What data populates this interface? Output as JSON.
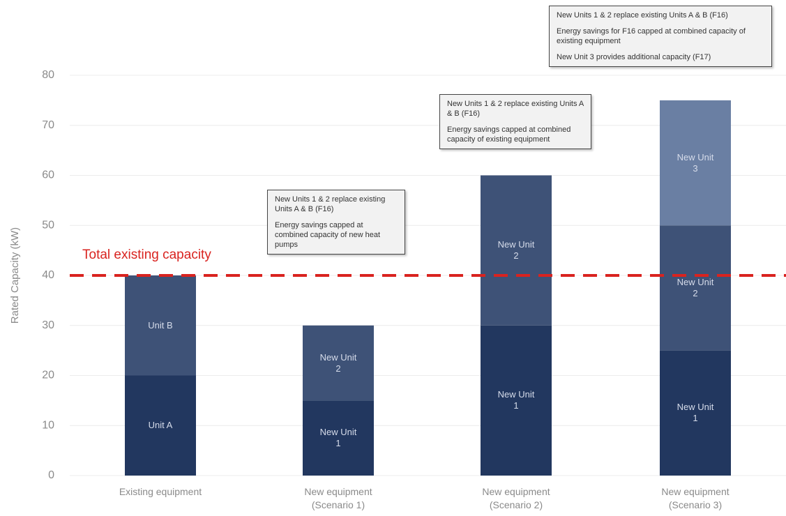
{
  "chart_data": {
    "type": "stacked-bar",
    "y_label": "Rated Capacity (kW)",
    "ylim": [
      0,
      80
    ],
    "yticks": [
      0,
      10,
      20,
      30,
      40,
      50,
      60,
      70,
      80
    ],
    "grid": true,
    "bars": [
      {
        "category": "Existing equipment",
        "segments": [
          {
            "name": "Unit A",
            "value": 20,
            "color": "#22375f"
          },
          {
            "name": "Unit B",
            "value": 20,
            "color": "#3e5277"
          }
        ]
      },
      {
        "category": "New equipment (Scenario 1)",
        "segments": [
          {
            "name": "New Unit 1",
            "value": 15,
            "color": "#22375f"
          },
          {
            "name": "New Unit 2",
            "value": 15,
            "color": "#3e5277"
          }
        ]
      },
      {
        "category": "New equipment (Scenario 2)",
        "segments": [
          {
            "name": "New Unit 1",
            "value": 30,
            "color": "#22375f"
          },
          {
            "name": "New Unit 2",
            "value": 30,
            "color": "#3e5277"
          }
        ]
      },
      {
        "category": "New equipment (Scenario 3)",
        "segments": [
          {
            "name": "New Unit 1",
            "value": 25,
            "color": "#22375f"
          },
          {
            "name": "New Unit 2",
            "value": 25,
            "color": "#3e5277"
          },
          {
            "name": "New Unit 3",
            "value": 25,
            "color": "#6a7fa3"
          }
        ]
      }
    ],
    "reference_line": {
      "label": "Total existing capacity",
      "value": 40,
      "color": "#d9231f"
    },
    "annotations": [
      {
        "bar": 1,
        "paragraphs": [
          "New Units 1 & 2 replace existing Units A & B (F16)",
          "Energy savings capped at combined capacity of new heat pumps"
        ]
      },
      {
        "bar": 2,
        "paragraphs": [
          "New Units 1 & 2 replace existing Units A & B (F16)",
          "Energy savings capped at combined capacity of existing equipment"
        ]
      },
      {
        "bar": 3,
        "paragraphs": [
          "New Units 1 & 2 replace existing Units A & B (F16)",
          "Energy savings for F16 capped at combined capacity of existing equipment",
          "New Unit 3 provides additional capacity (F17)"
        ]
      }
    ]
  }
}
